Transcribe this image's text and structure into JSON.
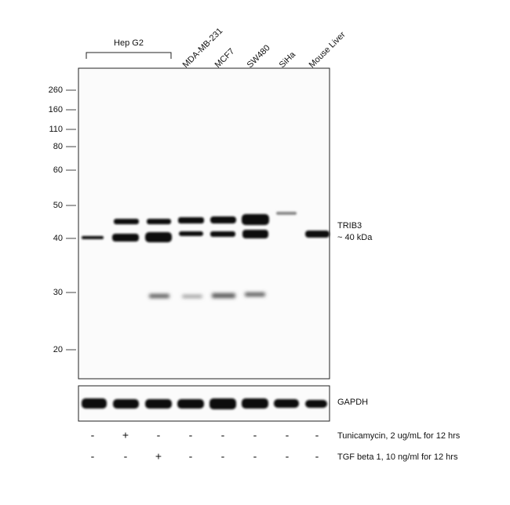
{
  "lanes": {
    "group_label": "Hep G2",
    "labels": [
      "MDA-MB-231",
      "MCF7",
      "SW480",
      "SiHa",
      "Mouse Liver"
    ]
  },
  "markers": [
    "260",
    "160",
    "110",
    "80",
    "60",
    "50",
    "40",
    "30",
    "20"
  ],
  "bands": {
    "target": "TRIB3",
    "size": "~ 40 kDa",
    "loading_control": "GAPDH"
  },
  "treatments": [
    {
      "name": "Tunicamycin, 2 ug/mL for 12 hrs",
      "signs": [
        "-",
        "+",
        "-",
        "-",
        "-",
        "-",
        "-",
        "-"
      ]
    },
    {
      "name": "TGF beta 1, 10 ng/ml for 12 hrs",
      "signs": [
        "-",
        "-",
        "+",
        "-",
        "-",
        "-",
        "-",
        "-"
      ]
    }
  ]
}
